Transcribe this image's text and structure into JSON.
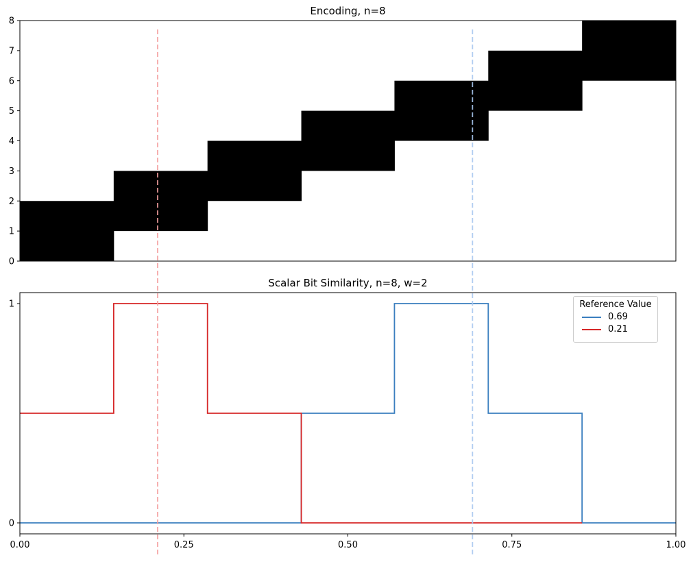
{
  "chart_data": [
    {
      "type": "heatmap",
      "title": "Encoding, n=8",
      "xlim": [
        0,
        1
      ],
      "ylim": [
        0,
        8
      ],
      "yticks": [
        "0",
        "1",
        "2",
        "3",
        "4",
        "5",
        "6",
        "7",
        "8"
      ],
      "n": 8,
      "w": 2,
      "cells": [
        {
          "x0": 0.0,
          "x1": 0.143,
          "y0": 0,
          "y1": 2
        },
        {
          "x0": 0.143,
          "x1": 0.286,
          "y0": 1,
          "y1": 3
        },
        {
          "x0": 0.286,
          "x1": 0.429,
          "y0": 2,
          "y1": 4
        },
        {
          "x0": 0.429,
          "x1": 0.571,
          "y0": 3,
          "y1": 5
        },
        {
          "x0": 0.571,
          "x1": 0.714,
          "y0": 4,
          "y1": 6
        },
        {
          "x0": 0.714,
          "x1": 0.857,
          "y0": 5,
          "y1": 7
        },
        {
          "x0": 0.857,
          "x1": 1.0,
          "y0": 6,
          "y1": 8
        }
      ],
      "cell_color": "#000000"
    },
    {
      "type": "line",
      "title": "Scalar Bit Similarity, n=8, w=2",
      "xlim": [
        0,
        1
      ],
      "ylim": [
        -0.05,
        1.05
      ],
      "xticks": [
        "0.00",
        "0.25",
        "0.50",
        "0.75",
        "1.00"
      ],
      "xtick_values": [
        0,
        0.25,
        0.5,
        0.75,
        1.0
      ],
      "yticks": [
        "0",
        "1"
      ],
      "ytick_values": [
        0,
        1
      ],
      "legend": {
        "title": "Reference Value",
        "position": "top-right"
      },
      "series": [
        {
          "name": "0.69",
          "color": "#3a7ebf",
          "step": [
            {
              "x0": 0.0,
              "x1": 0.429,
              "y": 0
            },
            {
              "x0": 0.429,
              "x1": 0.571,
              "y": 0.5
            },
            {
              "x0": 0.571,
              "x1": 0.714,
              "y": 1
            },
            {
              "x0": 0.714,
              "x1": 0.857,
              "y": 0.5
            },
            {
              "x0": 0.857,
              "x1": 1.0,
              "y": 0
            }
          ]
        },
        {
          "name": "0.21",
          "color": "#d62728",
          "step": [
            {
              "x0": 0.0,
              "x1": 0.143,
              "y": 0.5
            },
            {
              "x0": 0.143,
              "x1": 0.286,
              "y": 1
            },
            {
              "x0": 0.286,
              "x1": 0.429,
              "y": 0.5
            },
            {
              "x0": 0.429,
              "x1": 0.857,
              "y": 0
            }
          ]
        }
      ],
      "reference_lines": [
        {
          "x": 0.21,
          "color": "#f4a0a0"
        },
        {
          "x": 0.69,
          "color": "#a9c8f0"
        }
      ]
    }
  ]
}
